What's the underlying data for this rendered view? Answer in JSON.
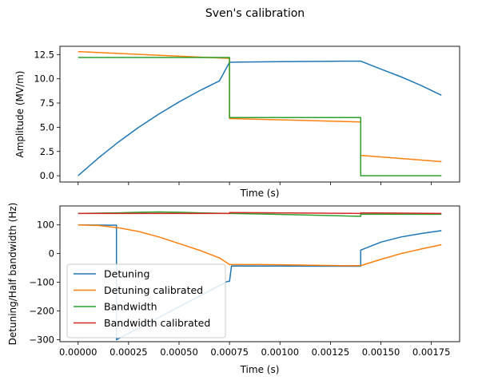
{
  "figure": {
    "title": "Sven's calibration"
  },
  "colors": {
    "blue": "#1f77b4",
    "orange": "#ff7f0e",
    "green": "#2ca02c",
    "red": "#d62728"
  },
  "chart_data": [
    {
      "type": "line",
      "xlabel": "Time (s)",
      "ylabel": "Amplitude (MV/m)",
      "xlim": [
        -9e-05,
        0.00189
      ],
      "ylim": [
        -0.65,
        13.35
      ],
      "x_ticks": [
        0,
        0.00025,
        0.0005,
        0.00075,
        0.001,
        0.00125,
        0.0015,
        0.00175
      ],
      "x_tick_labels_shown": false,
      "y_ticks": [
        0.0,
        2.5,
        5.0,
        7.5,
        10.0,
        12.5
      ],
      "y_tick_labels": [
        "0.0",
        "2.5",
        "5.0",
        "7.5",
        "10.0",
        "12.5"
      ],
      "series": [
        {
          "color": "blue",
          "x": [
            0,
            0.0001,
            0.0002,
            0.0003,
            0.0004,
            0.0005,
            0.0006,
            0.0007,
            0.00075,
            0.0008,
            0.0009,
            0.001,
            0.0011,
            0.0012,
            0.0013,
            0.0014,
            0.0015,
            0.0016,
            0.0017,
            0.0018
          ],
          "y": [
            0,
            1.82,
            3.48,
            4.99,
            6.36,
            7.61,
            8.75,
            9.78,
            11.7,
            11.72,
            11.74,
            11.76,
            11.78,
            11.8,
            11.82,
            11.82,
            11.0,
            10.2,
            9.3,
            8.3
          ]
        },
        {
          "color": "orange",
          "x": [
            0,
            0.00075,
            0.00075,
            0.0014,
            0.0014,
            0.0018
          ],
          "y": [
            12.8,
            12.1,
            5.9,
            5.55,
            2.1,
            1.45
          ]
        },
        {
          "color": "green",
          "x": [
            0,
            0.00075,
            0.00075,
            0.0014,
            0.0014,
            0.0018
          ],
          "y": [
            12.2,
            12.2,
            6.0,
            6.0,
            0.0,
            0.0
          ]
        }
      ]
    },
    {
      "type": "line",
      "xlabel": "Time (s)",
      "ylabel": "Detuning/Half bandwidth (Hz)",
      "xlim": [
        -9e-05,
        0.00189
      ],
      "ylim": [
        -307,
        166
      ],
      "x_ticks": [
        0,
        0.00025,
        0.0005,
        0.00075,
        0.001,
        0.00125,
        0.0015,
        0.00175
      ],
      "x_tick_labels": [
        "0.00000",
        "0.00025",
        "0.00050",
        "0.00075",
        "0.00100",
        "0.00125",
        "0.00150",
        "0.00175"
      ],
      "y_ticks": [
        -300,
        -200,
        -100,
        0,
        100
      ],
      "y_tick_labels": [
        "−300",
        "−200",
        "−100",
        "0",
        "100"
      ],
      "legend_position": "lower-left",
      "series": [
        {
          "name": "Detuning",
          "color": "blue",
          "x": [
            0,
            0.00019,
            0.00019,
            0.00074,
            0.00075,
            0.00076,
            0.0014,
            0.0014,
            0.0015,
            0.0016,
            0.0017,
            0.0018
          ],
          "y": [
            100,
            99,
            -300,
            -97,
            -97,
            -43,
            -44,
            12,
            40,
            58,
            70,
            80
          ]
        },
        {
          "name": "Detuning calibrated",
          "color": "orange",
          "x": [
            0,
            0.0001,
            0.0002,
            0.0003,
            0.0004,
            0.0005,
            0.0006,
            0.0007,
            0.00075,
            0.0008,
            0.0009,
            0.001,
            0.0011,
            0.0012,
            0.0013,
            0.0014,
            0.0015,
            0.0016,
            0.0017,
            0.0018
          ],
          "y": [
            100,
            98,
            90,
            77,
            58,
            35,
            12,
            -15,
            -38,
            -38,
            -38,
            -39,
            -40,
            -41,
            -42,
            -42,
            -20,
            0,
            16,
            31
          ]
        },
        {
          "name": "Bandwidth",
          "color": "green",
          "x": [
            0,
            0.0002,
            0.0003,
            0.0004,
            0.0005,
            0.0006,
            0.00075,
            0.0009,
            0.0011,
            0.0014,
            0.0014,
            0.0018
          ],
          "y": [
            140,
            142,
            144,
            145,
            144,
            142,
            140,
            138,
            135,
            130,
            137,
            137
          ]
        },
        {
          "name": "Bandwidth calibrated",
          "color": "red",
          "x": [
            0,
            0.00075,
            0.00075,
            0.0014,
            0.0014,
            0.0018
          ],
          "y": [
            140,
            140,
            143,
            140,
            142,
            140
          ]
        }
      ]
    }
  ]
}
